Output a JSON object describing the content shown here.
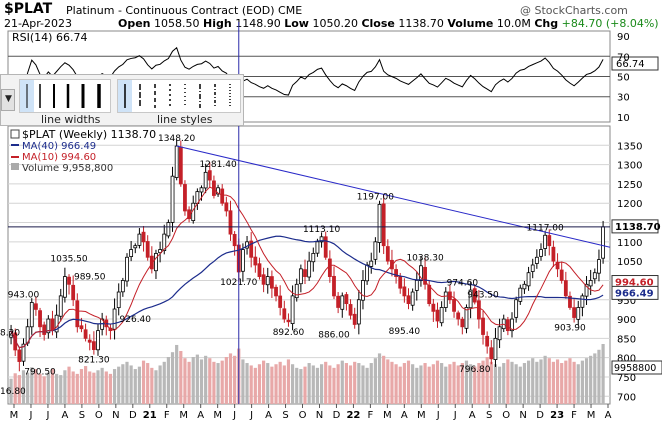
{
  "header": {
    "symbol": "$PLAT",
    "name": "Platinum - Continuous Contract (EOD)",
    "exchange": "CME",
    "date": "21-Apr-2023",
    "open_label": "Open",
    "open": "1058.50",
    "high_label": "High",
    "high": "1148.90",
    "low_label": "Low",
    "low": "1050.20",
    "close_label": "Close",
    "close": "1138.70",
    "volume_label": "Volume",
    "volume": "10.0M",
    "chg_label": "Chg",
    "chg": "+84.70 (+8.04%)",
    "credit": "@ StockCharts.com"
  },
  "rsi": {
    "label": "RSI(14) 66.74",
    "value_tag": "66.74",
    "ticks": [
      "90",
      "70",
      "50",
      "30",
      "10"
    ]
  },
  "toolbar": {
    "widths_label": "line widths",
    "styles_label": "line styles",
    "dropdown_glyph": "▼"
  },
  "legend": {
    "price": "$PLAT (Weekly) 1138.70",
    "ma40": "MA(40) 966.49",
    "ma10": "MA(10) 994.60",
    "volume": "Volume 9,958,800"
  },
  "colors": {
    "up": "#000000",
    "down": "#c42028",
    "ma40": "#1c2c8c",
    "ma10": "#c42028",
    "volume": "#b8b8b8",
    "volume_down": "#e8a8a8",
    "trendline": "#2a2ac8",
    "crosshair": "#2a2aa8",
    "grid": "#d4d4d4"
  },
  "chart_data": {
    "type": "candlestick",
    "interval": "weekly",
    "ylim": [
      680,
      1400
    ],
    "y_ticks_price": [
      "1350",
      "1300",
      "1250",
      "1200",
      "1150",
      "1100",
      "1050",
      "1000",
      "950",
      "900",
      "850",
      "800",
      "750",
      "700"
    ],
    "x_ticks": [
      "M",
      "J",
      "J",
      "A",
      "S",
      "O",
      "N",
      "D",
      "21",
      "F",
      "M",
      "A",
      "M",
      "J",
      "J",
      "A",
      "S",
      "O",
      "N",
      "D",
      "22",
      "F",
      "M",
      "A",
      "M",
      "J",
      "J",
      "A",
      "S",
      "O",
      "N",
      "D",
      "23",
      "F",
      "M",
      "A"
    ],
    "x_tick_bold": [
      8,
      20,
      32
    ],
    "current_price": "1138.70",
    "ma10_tag": "994.60",
    "ma40_tag": "966.49",
    "volume_tag": "9958800",
    "price_annotations": [
      {
        "text": "1348.20",
        "x": 40,
        "y": 1348.2,
        "pos": "above"
      },
      {
        "text": "1281.40",
        "x": 50,
        "y": 1281.4,
        "pos": "above"
      },
      {
        "text": "1035.50",
        "x": 14,
        "y": 1035.5,
        "pos": "above"
      },
      {
        "text": "989.50",
        "x": 19,
        "y": 989.5,
        "pos": "above"
      },
      {
        "text": "943.00",
        "x": 3,
        "y": 943.0,
        "pos": "above"
      },
      {
        "text": "926.40",
        "x": 30,
        "y": 926.4,
        "pos": "below"
      },
      {
        "text": "821.30",
        "x": 20,
        "y": 821.3,
        "pos": "below"
      },
      {
        "text": "790.50",
        "x": 7,
        "y": 790.5,
        "pos": "below"
      },
      {
        "text": "8.20",
        "x": 0,
        "y": 868.2,
        "pos": "left"
      },
      {
        "text": "16.80",
        "x": 0,
        "y": 716.8,
        "pos": "left"
      },
      {
        "text": "1021.70",
        "x": 55,
        "y": 1021.7,
        "pos": "below"
      },
      {
        "text": "1113.10",
        "x": 75,
        "y": 1113.1,
        "pos": "above"
      },
      {
        "text": "892.60",
        "x": 67,
        "y": 892.6,
        "pos": "below"
      },
      {
        "text": "886.00",
        "x": 78,
        "y": 886.0,
        "pos": "below"
      },
      {
        "text": "1197.00",
        "x": 88,
        "y": 1197.0,
        "pos": "above"
      },
      {
        "text": "1038.30",
        "x": 100,
        "y": 1038.3,
        "pos": "above"
      },
      {
        "text": "895.40",
        "x": 95,
        "y": 895.4,
        "pos": "below"
      },
      {
        "text": "974.60",
        "x": 109,
        "y": 974.6,
        "pos": "above"
      },
      {
        "text": "943.50",
        "x": 114,
        "y": 943.5,
        "pos": "above"
      },
      {
        "text": "796.80",
        "x": 112,
        "y": 796.8,
        "pos": "below"
      },
      {
        "text": "1117.00",
        "x": 129,
        "y": 1117.0,
        "pos": "above"
      },
      {
        "text": "903.90",
        "x": 135,
        "y": 903.9,
        "pos": "below"
      }
    ],
    "trendline": {
      "from": [
        40,
        1348.2
      ],
      "to": [
        150,
        1086
      ]
    },
    "horizontal_line": 1138.7,
    "crosshair_x": 55,
    "rsi_lines": [
      70,
      50,
      30
    ],
    "closes": [
      868,
      820,
      790,
      835,
      880,
      943,
      925,
      880,
      860,
      900,
      870,
      910,
      960,
      1010,
      990,
      950,
      880,
      875,
      850,
      840,
      821,
      870,
      900,
      880,
      870,
      926,
      970,
      1000,
      1060,
      1080,
      1090,
      1120,
      1100,
      1060,
      1030,
      1070,
      1080,
      1120,
      1150,
      1270,
      1348,
      1250,
      1180,
      1160,
      1200,
      1230,
      1240,
      1280,
      1260,
      1220,
      1240,
      1200,
      1180,
      1120,
      1090,
      1022,
      1080,
      1100,
      1060,
      1040,
      1010,
      990,
      1010,
      980,
      960,
      930,
      900,
      893,
      960,
      990,
      1030,
      1010,
      1050,
      1070,
      1100,
      1113,
      1060,
      1010,
      960,
      930,
      960,
      940,
      910,
      886,
      950,
      1000,
      1040,
      1050,
      1100,
      1197,
      1090,
      1050,
      1030,
      1010,
      980,
      960,
      940,
      970,
      1000,
      1038,
      990,
      940,
      920,
      895,
      930,
      970,
      950,
      920,
      900,
      880,
      930,
      975,
      944,
      900,
      860,
      830,
      797,
      850,
      880,
      900,
      870,
      900,
      950,
      980,
      990,
      1020,
      1040,
      1060,
      1080,
      1117,
      1090,
      1050,
      1030,
      1000,
      960,
      930,
      904,
      930,
      960,
      990,
      1000,
      1020,
      1054,
      1139
    ],
    "volumes_k": [
      4200,
      5100,
      4800,
      5600,
      5200,
      6100,
      5800,
      5000,
      4600,
      5200,
      5800,
      5000,
      4800,
      5600,
      6200,
      5400,
      5000,
      5800,
      6300,
      5400,
      5200,
      5600,
      6000,
      5400,
      5000,
      5800,
      6200,
      6600,
      7000,
      6400,
      5800,
      6200,
      7200,
      6800,
      6000,
      5600,
      6400,
      7000,
      7800,
      8600,
      9800,
      8800,
      7600,
      7000,
      7800,
      8200,
      7400,
      8000,
      7600,
      7000,
      6800,
      7200,
      7800,
      8400,
      8000,
      9200,
      7400,
      6800,
      6400,
      6000,
      6600,
      7200,
      6800,
      6200,
      6600,
      7000,
      6400,
      7400,
      6600,
      6000,
      5800,
      6200,
      6800,
      6400,
      6000,
      6600,
      7000,
      6400,
      6000,
      6600,
      7200,
      6800,
      6400,
      7000,
      6800,
      6400,
      6000,
      6800,
      7600,
      8400,
      8000,
      7400,
      7000,
      6600,
      6200,
      6800,
      7200,
      6600,
      6000,
      6400,
      6800,
      6200,
      6600,
      7200,
      6800,
      6200,
      6600,
      7000,
      6400,
      6800,
      7200,
      6600,
      6200,
      6800,
      7200,
      7800,
      7000,
      6600,
      6200,
      6800,
      7400,
      7000,
      6600,
      6200,
      6800,
      7200,
      7600,
      7000,
      7400,
      8000,
      7600,
      7000,
      7400,
      6800,
      7200,
      7600,
      7000,
      6600,
      7200,
      7600,
      8000,
      8400,
      9000,
      9959
    ]
  }
}
